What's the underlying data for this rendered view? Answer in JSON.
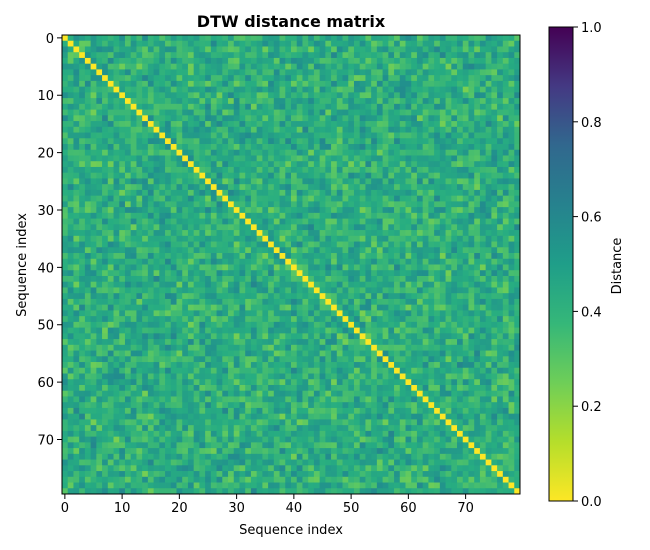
{
  "chart_data": {
    "type": "heatmap",
    "title": "DTW distance matrix",
    "xlabel": "Sequence index",
    "ylabel": "Sequence index",
    "size": 80,
    "x_range": [
      0,
      79
    ],
    "y_range": [
      0,
      79
    ],
    "x_ticks": [
      "0",
      "10",
      "20",
      "30",
      "40",
      "50",
      "60",
      "70"
    ],
    "y_ticks": [
      "0",
      "10",
      "20",
      "30",
      "40",
      "50",
      "60",
      "70"
    ],
    "diagonal_value": 0.0,
    "off_diagonal_typical_range": [
      0.2,
      0.55
    ],
    "colormap": "viridis_r",
    "colorbar": {
      "label": "Distance",
      "vmin": 0.0,
      "vmax": 1.0,
      "ticks": [
        "0.0",
        "0.2",
        "0.4",
        "0.6",
        "0.8",
        "1.0"
      ]
    },
    "grid": false,
    "colors": {
      "low": "#fde725",
      "mid": "#21918c",
      "high": "#440154"
    }
  }
}
